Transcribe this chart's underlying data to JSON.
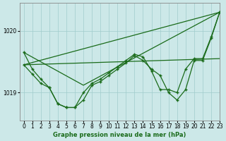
{
  "background_color": "#cce8e8",
  "grid_color": "#a0cccc",
  "line_color": "#1a6b1a",
  "title": "Graphe pression niveau de la mer (hPa)",
  "xlim": [
    -0.5,
    23
  ],
  "ylim": [
    1018.55,
    1020.45
  ],
  "yticks": [
    1019,
    1020
  ],
  "xticks": [
    0,
    1,
    2,
    3,
    4,
    5,
    6,
    7,
    8,
    9,
    10,
    11,
    12,
    13,
    14,
    15,
    16,
    17,
    18,
    19,
    20,
    21,
    22,
    23
  ],
  "line1_x": [
    0,
    1,
    2,
    3,
    4,
    5,
    6,
    7,
    8,
    9,
    10,
    11,
    12,
    13,
    14,
    15,
    16,
    17,
    18,
    19,
    20,
    21,
    22,
    23
  ],
  "line1_y": [
    1019.65,
    1019.38,
    1019.22,
    1019.08,
    1018.82,
    1018.76,
    1018.76,
    1019.0,
    1019.15,
    1019.22,
    1019.32,
    1019.42,
    1019.52,
    1019.62,
    1019.58,
    1019.35,
    1019.05,
    1019.05,
    1019.0,
    1019.38,
    1019.55,
    1019.55,
    1019.9,
    1020.3
  ],
  "line2_x": [
    0,
    1,
    2,
    3,
    4,
    5,
    6,
    7,
    8,
    9,
    10,
    11,
    12,
    13,
    14,
    15,
    16,
    17,
    18,
    19,
    20,
    21,
    22,
    23
  ],
  "line2_y": [
    1019.45,
    1019.3,
    1019.15,
    1019.08,
    1018.82,
    1018.76,
    1018.76,
    1018.88,
    1019.12,
    1019.18,
    1019.28,
    1019.38,
    1019.48,
    1019.6,
    1019.52,
    1019.38,
    1019.28,
    1019.0,
    1018.88,
    1019.05,
    1019.52,
    1019.52,
    1019.88,
    1020.3
  ],
  "line3_x": [
    0,
    23
  ],
  "line3_y": [
    1019.45,
    1020.3
  ],
  "line4_x": [
    0,
    23
  ],
  "line4_y": [
    1019.45,
    1019.55
  ],
  "line5_x": [
    0,
    7,
    23
  ],
  "line5_y": [
    1019.65,
    1019.12,
    1020.3
  ]
}
